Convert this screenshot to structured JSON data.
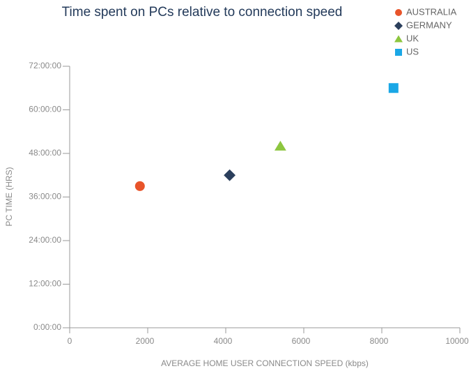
{
  "chart_data": {
    "type": "scatter",
    "title": "Time spent on PCs relative to connection speed",
    "xlabel": "AVERAGE HOME USER CONNECTION SPEED (kbps)",
    "ylabel": "PC TIME (HRS)",
    "xlim": [
      0,
      10000
    ],
    "xticks": [
      0,
      2000,
      4000,
      6000,
      8000,
      10000
    ],
    "ylim": [
      0,
      72
    ],
    "yticks": [
      {
        "value": 0,
        "label": "0:00:00"
      },
      {
        "value": 12,
        "label": "12:00:00"
      },
      {
        "value": 24,
        "label": "24:00:00"
      },
      {
        "value": 36,
        "label": "36:00:00"
      },
      {
        "value": 48,
        "label": "48:00:00"
      },
      {
        "value": 60,
        "label": "60:00:00"
      },
      {
        "value": 72,
        "label": "72:00:00"
      }
    ],
    "legend": "top right",
    "series": [
      {
        "name": "AUSTRALIA",
        "color": "#e8542a",
        "marker": "circle",
        "x": [
          1800
        ],
        "values": [
          39
        ]
      },
      {
        "name": "GERMANY",
        "color": "#2b3f5c",
        "marker": "diamond",
        "x": [
          4100
        ],
        "values": [
          42
        ]
      },
      {
        "name": "UK",
        "color": "#8dc63f",
        "marker": "triangle",
        "x": [
          5400
        ],
        "values": [
          50
        ]
      },
      {
        "name": "US",
        "color": "#1aa7e6",
        "marker": "square",
        "x": [
          8300
        ],
        "values": [
          66
        ]
      }
    ]
  }
}
